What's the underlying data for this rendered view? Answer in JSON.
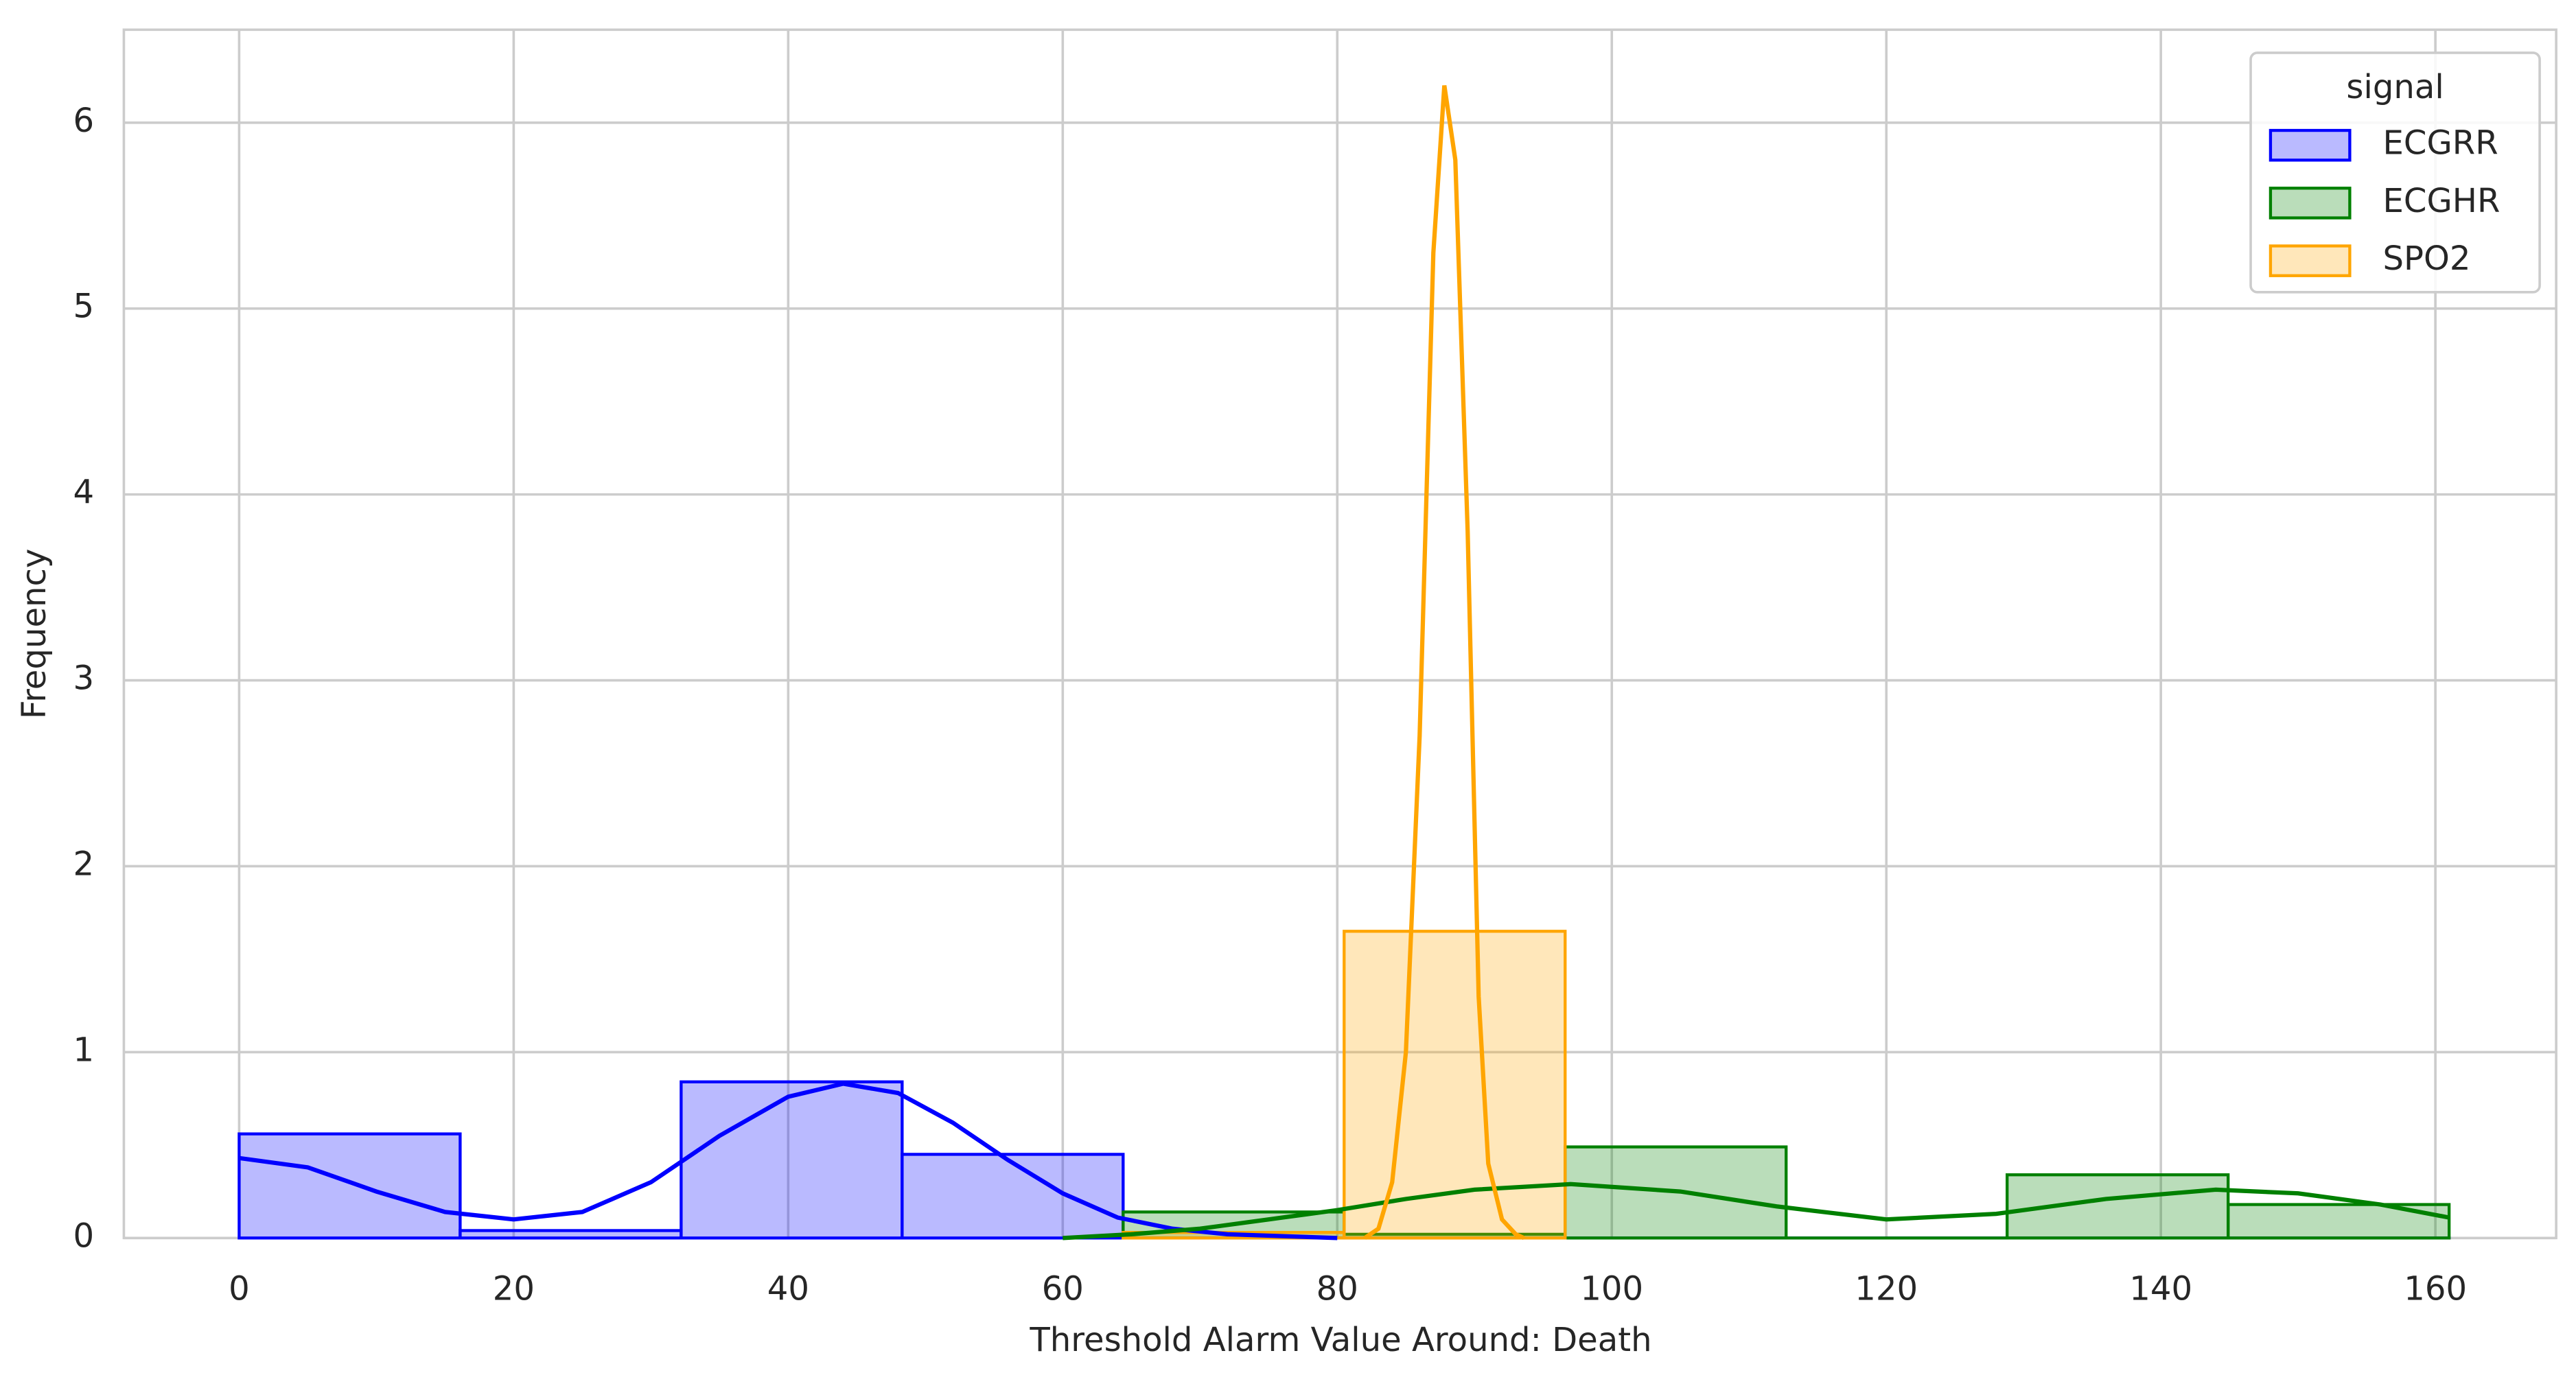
{
  "chart_data": {
    "type": "histogram",
    "xlabel": "Threshold Alarm Value Around: Death",
    "ylabel": "Frequency",
    "xlim": [
      -8.4,
      168.8
    ],
    "ylim": [
      0,
      6.5
    ],
    "xticks": [
      0,
      20,
      40,
      60,
      80,
      100,
      120,
      140,
      160
    ],
    "yticks": [
      0,
      1,
      2,
      3,
      4,
      5,
      6
    ],
    "grid": true,
    "legend_title": "signal",
    "legend_position": "upper right",
    "series": [
      {
        "name": "ECGRR",
        "color": "#0000ff",
        "bins": [
          0,
          16.1,
          32.2,
          48.3,
          64.4,
          80.5,
          96.6,
          112.7,
          128.8,
          144.9,
          161
        ],
        "values": [
          0.56,
          0.04,
          0.84,
          0.45,
          0,
          0,
          0,
          0,
          0,
          0
        ],
        "kde_x": [
          0,
          5,
          10,
          15,
          20,
          25,
          30,
          35,
          40,
          44,
          48,
          52,
          56,
          60,
          64,
          68,
          72,
          76,
          80
        ],
        "kde_y": [
          0.43,
          0.38,
          0.25,
          0.14,
          0.1,
          0.14,
          0.3,
          0.55,
          0.76,
          0.83,
          0.78,
          0.62,
          0.42,
          0.24,
          0.11,
          0.05,
          0.02,
          0.01,
          0
        ]
      },
      {
        "name": "ECGHR",
        "color": "#008000",
        "bins": [
          64.4,
          80.5,
          96.6,
          112.7,
          128.8,
          144.9,
          161
        ],
        "values": [
          0.14,
          0.02,
          0.49,
          0,
          0.34,
          0.18
        ],
        "kde_x": [
          60,
          65,
          70,
          75,
          80,
          85,
          90,
          97,
          105,
          112,
          120,
          128,
          136,
          144,
          150,
          156,
          161
        ],
        "kde_y": [
          0,
          0.02,
          0.05,
          0.1,
          0.15,
          0.21,
          0.26,
          0.29,
          0.25,
          0.17,
          0.1,
          0.13,
          0.21,
          0.26,
          0.24,
          0.18,
          0.11
        ]
      },
      {
        "name": "SPO2",
        "color": "#ffa500",
        "bins": [
          64.4,
          80.5,
          96.6
        ],
        "values": [
          0.03,
          1.65
        ],
        "kde_x": [
          82,
          83,
          84,
          85,
          86,
          87,
          87.8,
          88.6,
          89.5,
          90.3,
          91,
          92,
          93,
          93.6
        ],
        "kde_y": [
          0,
          0.05,
          0.3,
          1.0,
          2.7,
          5.3,
          6.2,
          5.8,
          3.8,
          1.3,
          0.4,
          0.1,
          0.02,
          0
        ]
      }
    ]
  }
}
